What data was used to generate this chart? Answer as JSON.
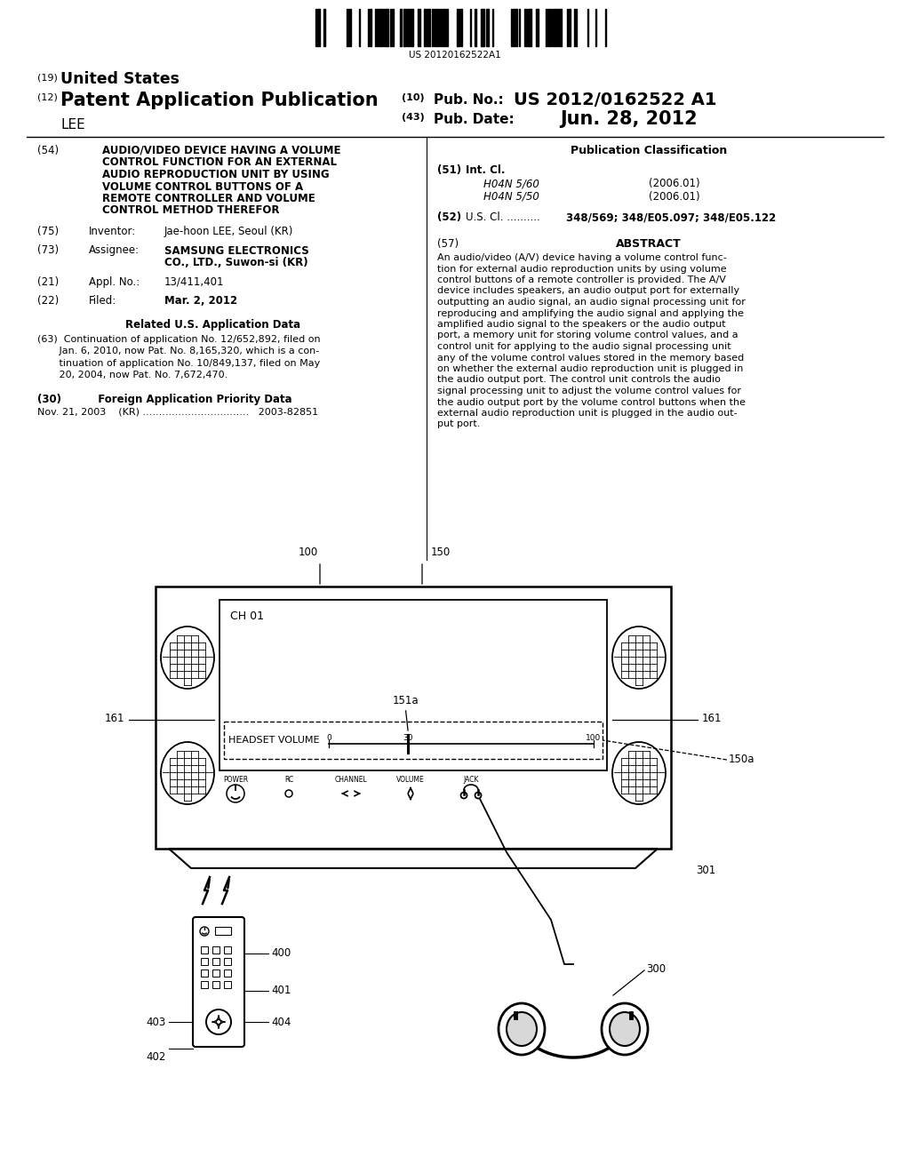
{
  "bg_color": "#ffffff",
  "barcode_text": "US 20120162522A1",
  "title_19": "(19) United States",
  "title_12": "(12) Patent Application Publication",
  "inventor_name": "    LEE",
  "pub_no_label": "(10) Pub. No.:",
  "pub_no": "US 2012/0162522 A1",
  "pub_date_label": "(43) Pub. Date:",
  "pub_date": "Jun. 28, 2012",
  "field54_label": "(54)",
  "field54_text": "AUDIO/VIDEO DEVICE HAVING A VOLUME\nCONTROL FUNCTION FOR AN EXTERNAL\nAUDIO REPRODUCTION UNIT BY USING\nVOLUME CONTROL BUTTONS OF A\nREMOTE CONTROLLER AND VOLUME\nCONTROL METHOD THEREFOR",
  "pub_class_label": "Publication Classification",
  "int_cl_label": "(51) Int. Cl.",
  "int_cl_1": "H04N 5/60",
  "int_cl_1_date": "(2006.01)",
  "int_cl_2": "H04N 5/50",
  "int_cl_2_date": "(2006.01)",
  "us_cl_label": "(52) U.S. Cl. ..........",
  "us_cl_text": "348/569; 348/E05.097; 348/E05.122",
  "inventor_label": "(75) Inventor:",
  "inventor_text": "Jae-hoon LEE, Seoul (KR)",
  "assignee_label": "(73) Assignee:",
  "assignee_text": "SAMSUNG ELECTRONICS\nCO., LTD., Suwon-si (KR)",
  "appl_label": "(21) Appl. No.:",
  "appl_text": "13/411,401",
  "filed_label": "(22) Filed:",
  "filed_text": "Mar. 2, 2012",
  "related_label": "Related U.S. Application Data",
  "related_text63": "(63)  Continuation of application No. 12/652,892, filed on\n       Jan. 6, 2010, now Pat. No. 8,165,320, which is a con-\n       tinuation of application No. 10/849,137, filed on May\n       20, 2004, now Pat. No. 7,672,470.",
  "foreign_label": "(30)          Foreign Application Priority Data",
  "foreign_text": "Nov. 21, 2003    (KR) .................................   2003-82851",
  "abstract_label": "ABSTRACT",
  "abstract_num": "(57)",
  "abstract_text": "An audio/video (A/V) device having a volume control func-\ntion for external audio reproduction units by using volume\ncontrol buttons of a remote controller is provided. The A/V\ndevice includes speakers, an audio output port for externally\noutputting an audio signal, an audio signal processing unit for\nreproducing and amplifying the audio signal and applying the\namplified audio signal to the speakers or the audio output\nport, a memory unit for storing volume control values, and a\ncontrol unit for applying to the audio signal processing unit\nany of the volume control values stored in the memory based\non whether the external audio reproduction unit is plugged in\nthe audio output port. The control unit controls the audio\nsignal processing unit to adjust the volume control values for\nthe audio output port by the volume control buttons when the\nexternal audio reproduction unit is plugged in the audio out-\nput port."
}
